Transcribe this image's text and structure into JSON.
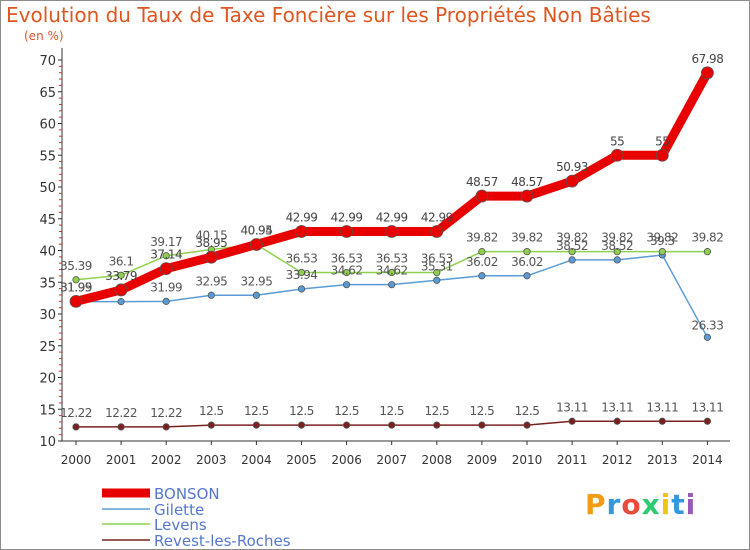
{
  "title": "Evolution du Taux de Taxe Foncière sur les Propriétés Non Bâties",
  "unit_label": "(en %)",
  "logo_text": "Proxiti",
  "chart_data": {
    "type": "line",
    "title": "Evolution du Taux de Taxe Foncière sur les Propriétés Non Bâties",
    "ylabel": "(en %)",
    "xlabel": "",
    "ylim": [
      10,
      70
    ],
    "yticks": [
      10,
      15,
      20,
      25,
      30,
      35,
      40,
      45,
      50,
      55,
      60,
      65,
      70
    ],
    "categories": [
      "2000",
      "2001",
      "2002",
      "2003",
      "2004",
      "2005",
      "2006",
      "2007",
      "2008",
      "2009",
      "2010",
      "2011",
      "2012",
      "2013",
      "2014"
    ],
    "series": [
      {
        "name": "BONSON",
        "color": "#e80000",
        "labels": [
          "31.99",
          "33.79",
          "37.14",
          "38.95",
          "40.95",
          "42.99",
          "42.99",
          "42.99",
          "42.99",
          "48.57",
          "48.57",
          "50.93",
          "55",
          "55",
          "67.98"
        ],
        "values": [
          31.99,
          33.79,
          37.14,
          38.95,
          40.95,
          42.99,
          42.99,
          42.99,
          42.99,
          48.57,
          48.57,
          50.93,
          55,
          55,
          67.98
        ]
      },
      {
        "name": "Gilette",
        "color": "#5b9bd5",
        "labels": [
          "31.95",
          "",
          "31.99",
          "32.95",
          "32.95",
          "33.94",
          "34.62",
          "34.62",
          "35.31",
          "36.02",
          "36.02",
          "38.52",
          "38.52",
          "39.3",
          "26.33"
        ],
        "values": [
          31.95,
          31.95,
          31.99,
          32.95,
          32.95,
          33.94,
          34.62,
          34.62,
          35.31,
          36.02,
          36.02,
          38.52,
          38.52,
          39.3,
          26.33
        ]
      },
      {
        "name": "Levens",
        "color": "#8fd14f",
        "labels": [
          "35.39",
          "36.1",
          "39.17",
          "40.15",
          "40.94",
          "36.53",
          "36.53",
          "36.53",
          "36.53",
          "39.82",
          "39.82",
          "39.82",
          "39.82",
          "39.82",
          "39.82"
        ],
        "values": [
          35.39,
          36.1,
          39.17,
          40.15,
          40.94,
          36.53,
          36.53,
          36.53,
          36.53,
          39.82,
          39.82,
          39.82,
          39.82,
          39.82,
          39.82
        ]
      },
      {
        "name": "Revest-les-Roches",
        "color": "#7b2020",
        "labels": [
          "12.22",
          "12.22",
          "12.22",
          "12.5",
          "12.5",
          "12.5",
          "12.5",
          "12.5",
          "12.5",
          "12.5",
          "12.5",
          "13.11",
          "13.11",
          "13.11",
          "13.11"
        ],
        "values": [
          12.22,
          12.22,
          12.22,
          12.5,
          12.5,
          12.5,
          12.5,
          12.5,
          12.5,
          12.5,
          12.5,
          13.11,
          13.11,
          13.11,
          13.11
        ]
      }
    ],
    "legend": [
      "BONSON",
      "Gilette",
      "Levens",
      "Revest-les-Roches"
    ],
    "grid": false
  }
}
